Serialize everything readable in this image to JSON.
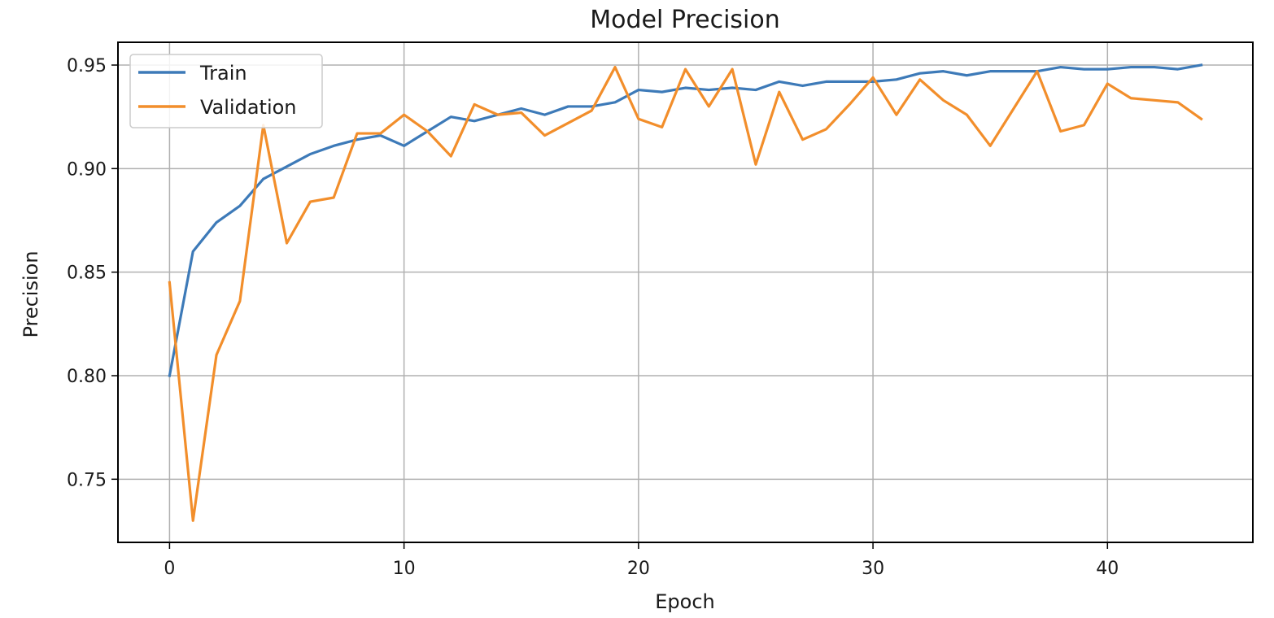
{
  "chart_data": {
    "type": "line",
    "title": "Model Precision",
    "xlabel": "Epoch",
    "ylabel": "Precision",
    "xlim": [
      -2.2,
      46.2
    ],
    "ylim": [
      0.7195,
      0.961
    ],
    "xticks": [
      0,
      10,
      20,
      30,
      40
    ],
    "yticks": [
      0.75,
      0.8,
      0.85,
      0.9,
      0.95
    ],
    "ytick_labels": [
      "0.75",
      "0.80",
      "0.85",
      "0.90",
      "0.95"
    ],
    "xtick_labels": [
      "0",
      "10",
      "20",
      "30",
      "40"
    ],
    "grid": true,
    "legend_position": "top-left",
    "x": [
      0,
      1,
      2,
      3,
      4,
      5,
      6,
      7,
      8,
      9,
      10,
      11,
      12,
      13,
      14,
      15,
      16,
      17,
      18,
      19,
      20,
      21,
      22,
      23,
      24,
      25,
      26,
      27,
      28,
      29,
      30,
      31,
      32,
      33,
      34,
      35,
      36,
      37,
      38,
      39,
      40,
      41,
      42,
      43,
      44
    ],
    "series": [
      {
        "name": "Train",
        "color": "#3d7ab8",
        "values": [
          0.8,
          0.86,
          0.874,
          0.882,
          0.895,
          0.901,
          0.907,
          0.911,
          0.914,
          0.916,
          0.911,
          0.918,
          0.925,
          0.923,
          0.926,
          0.929,
          0.926,
          0.93,
          0.93,
          0.932,
          0.938,
          0.937,
          0.939,
          0.938,
          0.939,
          0.938,
          0.942,
          0.94,
          0.942,
          0.942,
          0.942,
          0.943,
          0.946,
          0.947,
          0.945,
          0.947,
          0.947,
          0.947,
          0.949,
          0.948,
          0.948,
          0.949,
          0.949,
          0.948,
          0.95
        ]
      },
      {
        "name": "Validation",
        "color": "#f28e2b",
        "values": [
          0.845,
          0.73,
          0.81,
          0.836,
          0.921,
          0.864,
          0.884,
          0.886,
          0.917,
          0.917,
          0.926,
          0.918,
          0.906,
          0.931,
          0.926,
          0.927,
          0.916,
          0.922,
          0.928,
          0.949,
          0.924,
          0.92,
          0.948,
          0.93,
          0.948,
          0.902,
          0.937,
          0.914,
          0.919,
          0.931,
          0.944,
          0.926,
          0.943,
          0.933,
          0.926,
          0.911,
          0.929,
          0.947,
          0.918,
          0.921,
          0.941,
          0.934,
          0.933,
          0.932,
          0.924
        ]
      }
    ]
  }
}
